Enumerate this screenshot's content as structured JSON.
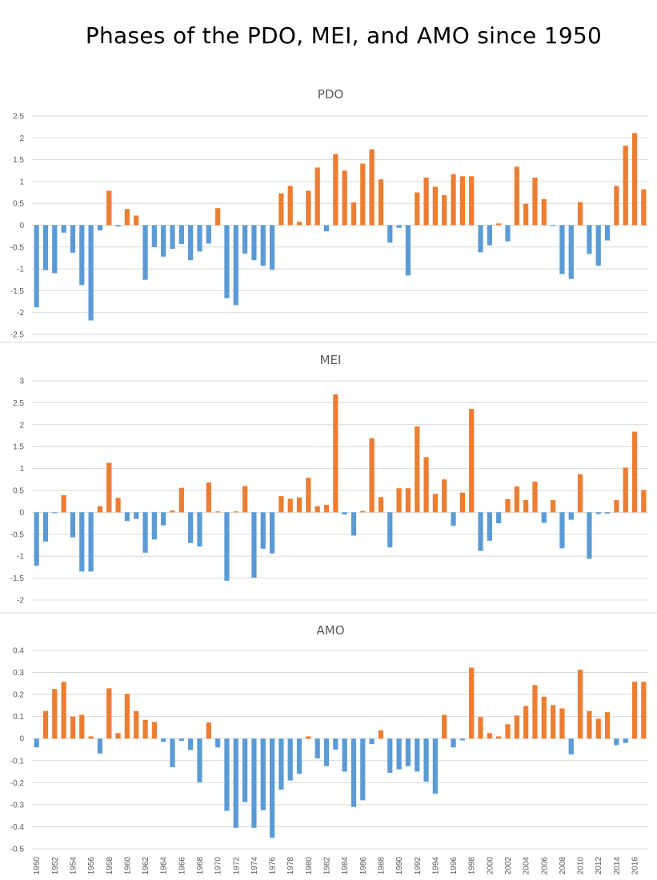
{
  "title": "Phases of the PDO, MEI, and AMO since 1950",
  "colors": {
    "positive": "#ED7D31",
    "negative": "#5B9BD5",
    "grid": "#D9D9D9",
    "text": "#595959"
  },
  "chart_data": [
    {
      "type": "bar",
      "title": "PDO",
      "ylim": [
        -2.5,
        2.5
      ],
      "yticks": [
        2.5,
        2,
        1.5,
        1,
        0.5,
        0,
        -0.5,
        -1,
        -1.5,
        -2,
        -2.5
      ],
      "grid": true,
      "categories": [
        1950,
        1951,
        1952,
        1953,
        1954,
        1955,
        1956,
        1957,
        1958,
        1959,
        1960,
        1961,
        1962,
        1963,
        1964,
        1965,
        1966,
        1967,
        1968,
        1969,
        1970,
        1971,
        1972,
        1973,
        1974,
        1975,
        1976,
        1977,
        1978,
        1979,
        1980,
        1981,
        1982,
        1983,
        1984,
        1985,
        1986,
        1987,
        1988,
        1989,
        1990,
        1991,
        1992,
        1993,
        1994,
        1995,
        1996,
        1997,
        1998,
        1999,
        2000,
        2001,
        2002,
        2003,
        2004,
        2005,
        2006,
        2007,
        2008,
        2009,
        2010,
        2011,
        2012,
        2013,
        2014,
        2015,
        2016,
        2017
      ],
      "values": [
        -1.88,
        -1.03,
        -1.1,
        -0.17,
        -0.63,
        -1.37,
        -2.18,
        -0.12,
        0.79,
        -0.03,
        0.37,
        0.22,
        -1.25,
        -0.5,
        -0.72,
        -0.54,
        -0.43,
        -0.8,
        -0.6,
        -0.42,
        0.39,
        -1.67,
        -1.83,
        -0.65,
        -0.8,
        -0.93,
        -1.02,
        0.73,
        0.9,
        0.08,
        0.79,
        1.32,
        -0.14,
        1.63,
        1.25,
        0.52,
        1.41,
        1.74,
        1.05,
        -0.4,
        -0.06,
        -1.15,
        0.75,
        1.09,
        0.88,
        0.69,
        1.17,
        1.12,
        1.12,
        -0.62,
        -0.46,
        0.04,
        -0.37,
        1.34,
        0.49,
        1.09,
        0.6,
        -0.02,
        -1.12,
        -1.23,
        0.53,
        -0.66,
        -0.93,
        -0.35,
        0.9,
        1.82,
        2.11,
        0.82
      ]
    },
    {
      "type": "bar",
      "title": "MEI",
      "ylim": [
        -2,
        3
      ],
      "yticks": [
        3,
        2.5,
        2,
        1.5,
        1,
        0.5,
        0,
        -0.5,
        -1,
        -1.5,
        -2
      ],
      "grid": true,
      "categories": [
        1950,
        1951,
        1952,
        1953,
        1954,
        1955,
        1956,
        1957,
        1958,
        1959,
        1960,
        1961,
        1962,
        1963,
        1964,
        1965,
        1966,
        1967,
        1968,
        1969,
        1970,
        1971,
        1972,
        1973,
        1974,
        1975,
        1976,
        1977,
        1978,
        1979,
        1980,
        1981,
        1982,
        1983,
        1984,
        1985,
        1986,
        1987,
        1988,
        1989,
        1990,
        1991,
        1992,
        1993,
        1994,
        1995,
        1996,
        1997,
        1998,
        1999,
        2000,
        2001,
        2002,
        2003,
        2004,
        2005,
        2006,
        2007,
        2008,
        2009,
        2010,
        2011,
        2012,
        2013,
        2014,
        2015,
        2016,
        2017
      ],
      "values": [
        -1.22,
        -0.67,
        -0.02,
        0.39,
        -0.57,
        -1.35,
        -1.35,
        0.14,
        1.13,
        0.33,
        -0.2,
        -0.15,
        -0.92,
        -0.62,
        -0.3,
        0.04,
        0.56,
        -0.7,
        -0.78,
        0.68,
        0.02,
        -1.56,
        0.02,
        0.6,
        -1.49,
        -0.83,
        -0.94,
        0.37,
        0.31,
        0.34,
        0.79,
        0.14,
        0.17,
        2.69,
        -0.05,
        -0.53,
        0.03,
        1.69,
        0.35,
        -0.8,
        0.55,
        0.55,
        1.96,
        1.26,
        0.42,
        0.75,
        -0.31,
        0.45,
        2.36,
        -0.88,
        -0.65,
        -0.25,
        0.3,
        0.59,
        0.28,
        0.7,
        -0.24,
        0.28,
        -0.82,
        -0.17,
        0.87,
        -1.06,
        -0.04,
        -0.03,
        0.28,
        1.02,
        1.84,
        0.51
      ]
    },
    {
      "type": "bar",
      "title": "AMO",
      "ylim": [
        -0.5,
        0.4
      ],
      "yticks": [
        0.4,
        0.3,
        0.2,
        0.1,
        0,
        -0.1,
        -0.2,
        -0.3,
        -0.4,
        -0.5
      ],
      "grid": true,
      "categories": [
        1950,
        1951,
        1952,
        1953,
        1954,
        1955,
        1956,
        1957,
        1958,
        1959,
        1960,
        1961,
        1962,
        1963,
        1964,
        1965,
        1966,
        1967,
        1968,
        1969,
        1970,
        1971,
        1972,
        1973,
        1974,
        1975,
        1976,
        1977,
        1978,
        1979,
        1980,
        1981,
        1982,
        1983,
        1984,
        1985,
        1986,
        1987,
        1988,
        1989,
        1990,
        1991,
        1992,
        1993,
        1994,
        1995,
        1996,
        1997,
        1998,
        1999,
        2000,
        2001,
        2002,
        2003,
        2004,
        2005,
        2006,
        2007,
        2008,
        2009,
        2010,
        2011,
        2012,
        2013,
        2014,
        2015,
        2016,
        2017
      ],
      "xtick_labels": [
        "1950",
        "1952",
        "1954",
        "1956",
        "1958",
        "1960",
        "1962",
        "1964",
        "1966",
        "1968",
        "1970",
        "1972",
        "1974",
        "1976",
        "1978",
        "1980",
        "1982",
        "1984",
        "1986",
        "1988",
        "1990",
        "1992",
        "1994",
        "1996",
        "1998",
        "2000",
        "2002",
        "2004",
        "2006",
        "2008",
        "2010",
        "2012",
        "2014",
        "2016"
      ],
      "values": [
        -0.04,
        0.125,
        0.225,
        0.258,
        0.1,
        0.108,
        0.01,
        -0.068,
        0.228,
        0.025,
        0.203,
        0.125,
        0.085,
        0.075,
        -0.015,
        -0.13,
        -0.01,
        -0.052,
        -0.198,
        0.073,
        -0.04,
        -0.328,
        -0.405,
        -0.288,
        -0.405,
        -0.325,
        -0.45,
        -0.232,
        -0.19,
        -0.16,
        0.01,
        -0.09,
        -0.125,
        -0.05,
        -0.15,
        -0.31,
        -0.28,
        -0.025,
        0.038,
        -0.155,
        -0.14,
        -0.125,
        -0.15,
        -0.195,
        -0.25,
        0.108,
        -0.04,
        -0.008,
        0.322,
        0.098,
        0.025,
        0.01,
        0.065,
        0.105,
        0.148,
        0.243,
        0.19,
        0.152,
        0.137,
        -0.072,
        0.312,
        0.125,
        0.09,
        0.12,
        -0.03,
        -0.02,
        0.258,
        0.258
      ]
    }
  ]
}
